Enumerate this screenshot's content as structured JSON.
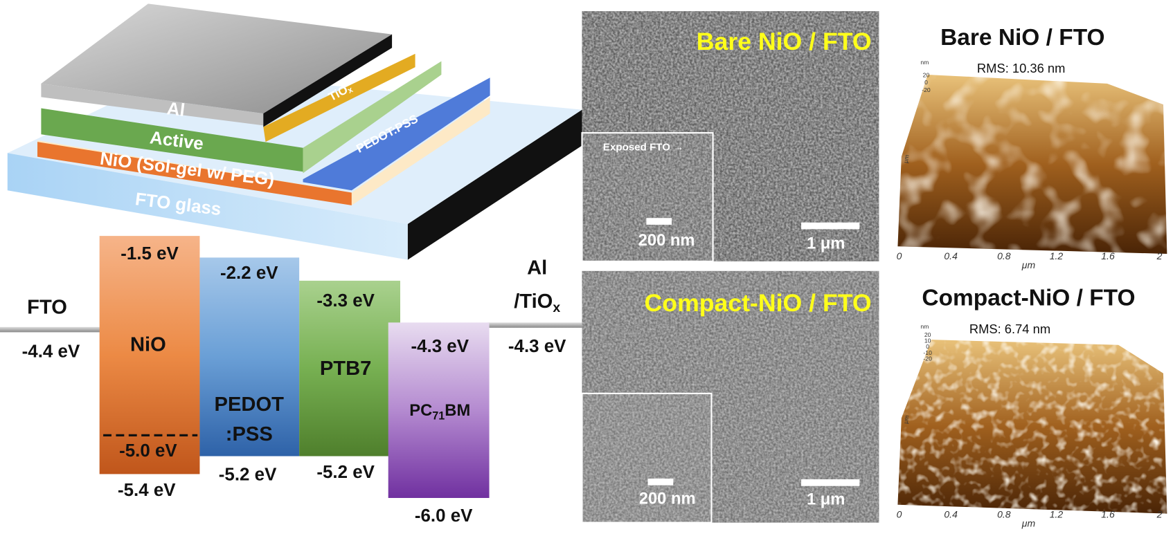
{
  "device_stack": {
    "layers": [
      {
        "text": "Al"
      },
      {
        "text": "TiO",
        "sub": "x"
      },
      {
        "text": "Active"
      },
      {
        "text": "PEDOT:PSS"
      },
      {
        "text": "NiO (Sol-gel w/ PEG)"
      },
      {
        "text": "FTO glass"
      }
    ]
  },
  "energy_diagram": {
    "left_electrode": {
      "label": "FTO",
      "level": "-4.4 eV"
    },
    "right_electrode": {
      "label": "Al",
      "label2": "/TiO",
      "label2_sub": "x",
      "level": "-4.3 eV"
    },
    "blocks": [
      {
        "label": "NiO",
        "top": "-1.5 eV",
        "bottom": "-5.4 eV",
        "extra": "-5.0 eV"
      },
      {
        "label": "PEDOT",
        "label2": ":PSS",
        "top": "-2.2 eV",
        "bottom": "-5.2 eV"
      },
      {
        "label": "PTB7",
        "top": "-3.3 eV",
        "bottom": "-5.2 eV"
      },
      {
        "label": "PC",
        "label_sub": "71",
        "label_rest": "BM",
        "top": "-4.3 eV",
        "bottom": "-6.0 eV"
      }
    ]
  },
  "sem": [
    {
      "title": "Bare NiO / FTO",
      "inset_label": "Exposed FTO →",
      "inset_scale": "200 nm",
      "scale": "1 μm"
    },
    {
      "title": "Compact-NiO / FTO",
      "inset_scale": "200 nm",
      "scale": "1 μm"
    }
  ],
  "afm": [
    {
      "title": "Bare NiO / FTO",
      "rms": "RMS: 10.36 nm",
      "z_unit": "nm",
      "z_ticks": [
        "20",
        "0",
        "-20"
      ],
      "y_unit": "μm",
      "x_ticks": [
        "0",
        "0.4",
        "0.8",
        "1.2",
        "1.6",
        "2"
      ],
      "x_unit": "μm"
    },
    {
      "title": "Compact-NiO / FTO",
      "rms": "RMS: 6.74 nm",
      "z_unit": "nm",
      "z_ticks": [
        "20",
        "10",
        "0",
        "-10",
        "-20"
      ],
      "y_unit": "μm",
      "x_ticks": [
        "0",
        "0.4",
        "0.8",
        "1.2",
        "1.6",
        "2"
      ],
      "x_unit": "μm"
    }
  ]
}
